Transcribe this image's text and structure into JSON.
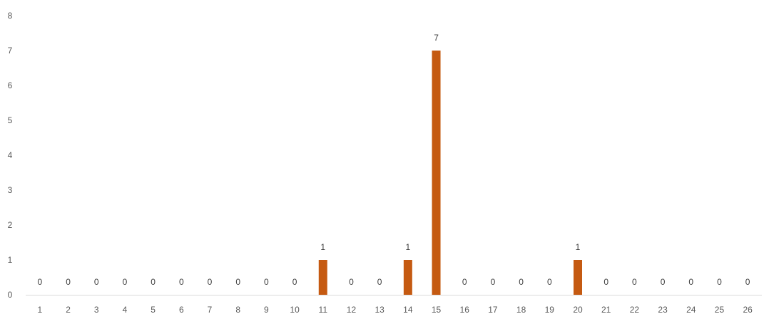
{
  "chart_data": {
    "type": "bar",
    "title": "",
    "xlabel": "",
    "ylabel": "",
    "categories": [
      "1",
      "2",
      "3",
      "4",
      "5",
      "6",
      "7",
      "8",
      "9",
      "10",
      "11",
      "12",
      "13",
      "14",
      "15",
      "16",
      "17",
      "18",
      "19",
      "20",
      "21",
      "22",
      "23",
      "24",
      "25",
      "26"
    ],
    "values": [
      0,
      0,
      0,
      0,
      0,
      0,
      0,
      0,
      0,
      0,
      1,
      0,
      0,
      1,
      7,
      0,
      0,
      0,
      0,
      1,
      0,
      0,
      0,
      0,
      0,
      0
    ],
    "ylim": [
      0,
      8
    ],
    "yticks": [
      0,
      1,
      2,
      3,
      4,
      5,
      6,
      7,
      8
    ],
    "grid": false,
    "legend": "none",
    "data_labels": true,
    "bar_color": "#C55A11",
    "axis_color": "#D9D9D9",
    "text_color": "#595959"
  }
}
